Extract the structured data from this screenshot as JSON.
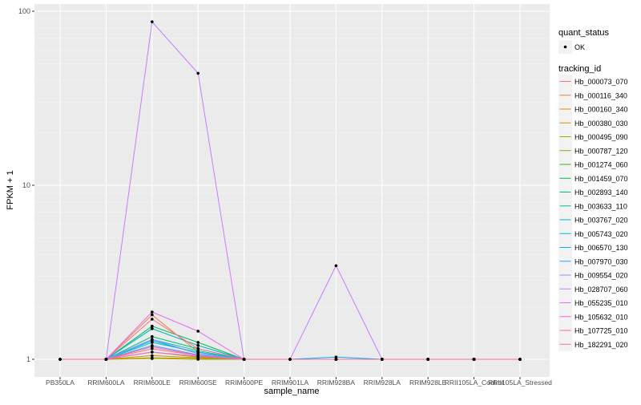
{
  "chart_data": {
    "type": "line",
    "xlabel": "sample_name",
    "ylabel": "FPKM + 1",
    "yscale": "log10",
    "ylim": [
      0.95,
      105
    ],
    "yticks": [
      1,
      10,
      100
    ],
    "ytick_labels": [
      "1",
      "10",
      "100"
    ],
    "grid": true,
    "legend_position": "right",
    "categories": [
      "PB350LA",
      "RRIM600LA",
      "RRIM600LE",
      "RRIM600SE",
      "RRIM600PE",
      "RRIM901LA",
      "RRIM928BA",
      "RRIM928LA",
      "RRIM928LE",
      "RRII105LA_Control",
      "RRII105LA_Stressed"
    ],
    "shape_legend": {
      "title": "quant_status",
      "items": [
        "OK"
      ]
    },
    "color_legend_title": "tracking_id",
    "series": [
      {
        "name": "Hb_000073_070",
        "color": "#F8766D",
        "values": [
          1,
          1,
          1.15,
          1.05,
          1,
          1,
          1,
          1,
          1,
          1,
          1
        ]
      },
      {
        "name": "Hb_000116_340",
        "color": "#EA8331",
        "values": [
          1,
          1,
          1.8,
          1.1,
          1,
          1,
          1,
          1,
          1,
          1,
          1
        ]
      },
      {
        "name": "Hb_000160_340",
        "color": "#D89000",
        "values": [
          1,
          1,
          1.05,
          1.02,
          1,
          1,
          1,
          1,
          1,
          1,
          1
        ]
      },
      {
        "name": "Hb_000380_030",
        "color": "#C09B00",
        "values": [
          1,
          1,
          1.02,
          1.01,
          1,
          1,
          1,
          1,
          1,
          1,
          1
        ]
      },
      {
        "name": "Hb_000495_090",
        "color": "#A3A500",
        "values": [
          1,
          1,
          1.01,
          1.0,
          1,
          1,
          1,
          1,
          1,
          1,
          1
        ]
      },
      {
        "name": "Hb_000787_120",
        "color": "#7CAE00",
        "values": [
          1,
          1,
          1.1,
          1.03,
          1,
          1,
          1,
          1,
          1,
          1,
          1
        ]
      },
      {
        "name": "Hb_001274_060",
        "color": "#39B600",
        "values": [
          1,
          1,
          1.5,
          1.2,
          1,
          1,
          1,
          1,
          1,
          1,
          1
        ]
      },
      {
        "name": "Hb_001459_070",
        "color": "#00BB4E",
        "values": [
          1,
          1,
          1.55,
          1.25,
          1,
          1,
          1,
          1,
          1,
          1,
          1
        ]
      },
      {
        "name": "Hb_002893_140",
        "color": "#00BF7D",
        "values": [
          1,
          1,
          1.35,
          1.15,
          1,
          1,
          1,
          1,
          1,
          1,
          1
        ]
      },
      {
        "name": "Hb_003633_110",
        "color": "#00C1A3",
        "values": [
          1,
          1,
          1.3,
          1.12,
          1,
          1,
          1,
          1,
          1,
          1,
          1
        ]
      },
      {
        "name": "Hb_003767_020",
        "color": "#00BFC4",
        "values": [
          1,
          1,
          1.25,
          1.1,
          1,
          1,
          1,
          1,
          1,
          1,
          1
        ]
      },
      {
        "name": "Hb_005743_020",
        "color": "#00BAE0",
        "values": [
          1,
          1,
          1.5,
          1.2,
          1,
          1,
          1,
          1,
          1,
          1,
          1
        ]
      },
      {
        "name": "Hb_006570_130",
        "color": "#00B0F6",
        "values": [
          1,
          1,
          1.28,
          1.08,
          1,
          1,
          1.03,
          1,
          1,
          1,
          1
        ]
      },
      {
        "name": "Hb_007970_030",
        "color": "#35A2FF",
        "values": [
          1,
          1,
          1.2,
          1.06,
          1,
          1,
          1,
          1,
          1,
          1,
          1
        ]
      },
      {
        "name": "Hb_009554_020",
        "color": "#9590FF",
        "values": [
          1,
          1,
          1.3,
          1.08,
          1,
          1,
          1,
          1,
          1,
          1,
          1
        ]
      },
      {
        "name": "Hb_028707_060",
        "color": "#C77CFF",
        "values": [
          1,
          1,
          87,
          44,
          1,
          1,
          3.45,
          1,
          1,
          1,
          1
        ]
      },
      {
        "name": "Hb_055235_010",
        "color": "#E76BF3",
        "values": [
          1,
          1,
          1.87,
          1.45,
          1,
          1,
          1,
          1,
          1,
          1,
          1
        ]
      },
      {
        "name": "Hb_105632_010",
        "color": "#FA62DB",
        "values": [
          1,
          1,
          1.1,
          1.04,
          1,
          1,
          1,
          1,
          1,
          1,
          1
        ]
      },
      {
        "name": "Hb_107725_010",
        "color": "#FF62BC",
        "values": [
          1,
          1,
          1.18,
          1.05,
          1,
          1,
          1,
          1,
          1,
          1,
          1
        ]
      },
      {
        "name": "Hb_182291_020",
        "color": "#FF6C91",
        "values": [
          1,
          1,
          1.7,
          1.15,
          1,
          1,
          1,
          1,
          1,
          1,
          1
        ]
      }
    ]
  }
}
